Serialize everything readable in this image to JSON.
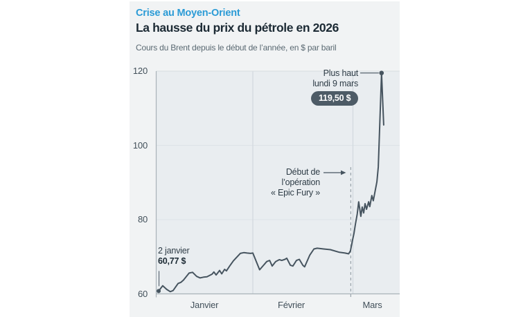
{
  "header": {
    "kicker": "Crise au Moyen-Orient",
    "title": "La hausse du prix du pétrole en 2026",
    "subtitle": "Cours du Brent depuis le début de l’année, en $ par baril"
  },
  "chart_data": {
    "type": "line",
    "title": "La hausse du prix du pétrole en 2026",
    "subtitle": "Cours du Brent depuis le début de l’année, en $ par baril",
    "xlabel": "",
    "ylabel": "$ par baril",
    "ylim": [
      60,
      120
    ],
    "y_ticks": [
      "120",
      "100",
      "80",
      "60"
    ],
    "x_months": [
      "Janvier",
      "Février",
      "Mars"
    ],
    "x_unit": "day_of_year_2026",
    "grid": true,
    "legend": "none",
    "series": [
      {
        "name": "Cours du Brent ($/baril)",
        "points": [
          [
            2,
            60.77
          ],
          [
            3.3,
            62.2
          ],
          [
            4.6,
            61.2
          ],
          [
            5.7,
            60.6
          ],
          [
            6.6,
            60.9
          ],
          [
            8.2,
            62.8
          ],
          [
            9.1,
            63.1
          ],
          [
            9.9,
            63.7
          ],
          [
            11.7,
            65.6
          ],
          [
            12.8,
            65.8
          ],
          [
            14.1,
            64.7
          ],
          [
            15.2,
            64.3
          ],
          [
            16.3,
            64.5
          ],
          [
            17.4,
            64.6
          ],
          [
            19,
            65.3
          ],
          [
            19.6,
            65.9
          ],
          [
            20.3,
            65.1
          ],
          [
            21.4,
            66.3
          ],
          [
            22.1,
            65.4
          ],
          [
            23,
            66.6
          ],
          [
            23.6,
            66.2
          ],
          [
            24.7,
            67.6
          ],
          [
            25.8,
            68.9
          ],
          [
            26.9,
            69.9
          ],
          [
            28,
            70.9
          ],
          [
            29.1,
            71.1
          ],
          [
            30.2,
            71.0
          ],
          [
            31.3,
            70.9
          ],
          [
            32,
            71.0
          ],
          [
            33.9,
            66.5
          ],
          [
            35.9,
            68.7
          ],
          [
            36.7,
            69.0
          ],
          [
            37.4,
            67.5
          ],
          [
            38.4,
            68.7
          ],
          [
            39.4,
            69.2
          ],
          [
            40.1,
            69.0
          ],
          [
            41,
            69.3
          ],
          [
            41.5,
            69.6
          ],
          [
            42.5,
            67.7
          ],
          [
            43.2,
            67.5
          ],
          [
            44.2,
            69.0
          ],
          [
            45,
            69.3
          ],
          [
            46,
            67.7
          ],
          [
            46.5,
            67.3
          ],
          [
            47.9,
            70.4
          ],
          [
            49.1,
            72.1
          ],
          [
            50,
            72.3
          ],
          [
            51.8,
            72.1
          ],
          [
            53.7,
            71.9
          ],
          [
            56.2,
            71.2
          ],
          [
            57.8,
            71.0
          ],
          [
            58.8,
            70.8
          ],
          [
            59.3,
            71.6
          ],
          [
            59.8,
            74.1
          ],
          [
            60.3,
            76.3
          ],
          [
            60.7,
            78.8
          ],
          [
            61.2,
            81.5
          ],
          [
            61.6,
            84.8
          ],
          [
            62.2,
            80.9
          ],
          [
            62.6,
            83.4
          ],
          [
            63,
            81.8
          ],
          [
            63.4,
            84.3
          ],
          [
            63.8,
            82.8
          ],
          [
            64.4,
            84.8
          ],
          [
            64.7,
            83.5
          ],
          [
            65.3,
            86.5
          ],
          [
            65.7,
            85.1
          ],
          [
            66.7,
            90.2
          ],
          [
            67.1,
            94.2
          ],
          [
            68,
            119.5
          ],
          [
            68.6,
            105.5
          ]
        ]
      }
    ]
  },
  "annotations": {
    "peak": {
      "line1": "Plus haut",
      "line2": "lundi 9 mars",
      "badge": "119,50 $",
      "day": 68,
      "value": 119.5
    },
    "start": {
      "line1": "2 janvier",
      "line2": "60,77 $",
      "day": 2,
      "value": 60.77
    },
    "event": {
      "line1": "Début de",
      "line2": "l’opération",
      "line3": "« Epic Fury »",
      "day": 59.4
    }
  },
  "colors": {
    "accent_blue": "#2b9bd6",
    "line": "#46545f",
    "badge_bg": "#4d5b66",
    "badge_text": "#ffffff",
    "plot_bg": "#e9edf0",
    "card_bg": "#f1f3f4",
    "grid_h": "#dde3e7",
    "grid_v": "#d2d9de",
    "axis": "#a9b2b8",
    "dashed": "#98a2a9",
    "text_dark": "#1c2a34",
    "text_gray": "#5a6972",
    "tick_text": "#42505a"
  }
}
